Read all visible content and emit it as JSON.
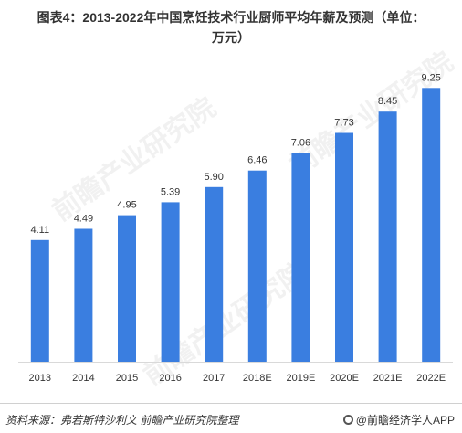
{
  "title_line1": "图表4：2013-2022年中国烹饪技术行业厨师平均年薪及预测（单位：",
  "title_line2": "万元）",
  "source_text": "资料来源：弗若斯特沙利文  前瞻产业研究院整理",
  "brand_text": "@前瞻经济学人APP",
  "watermark_text": "前瞻产业研究院",
  "bar_color": "#3a7ee0",
  "chart_data": {
    "type": "bar",
    "title": "图表4：2013-2022年中国烹饪技术行业厨师平均年薪及预测（单位：万元）",
    "categories": [
      "2013",
      "2014",
      "2015",
      "2016",
      "2017",
      "2018E",
      "2019E",
      "2020E",
      "2021E",
      "2022E"
    ],
    "values": [
      4.11,
      4.49,
      4.95,
      5.39,
      5.9,
      6.46,
      7.06,
      7.73,
      8.45,
      9.25
    ],
    "value_labels": [
      "4.11",
      "4.49",
      "4.95",
      "5.39",
      "5.90",
      "6.46",
      "7.06",
      "7.73",
      "8.45",
      "9.25"
    ],
    "ylim": [
      0,
      10
    ],
    "grid": false,
    "legend": "none"
  }
}
